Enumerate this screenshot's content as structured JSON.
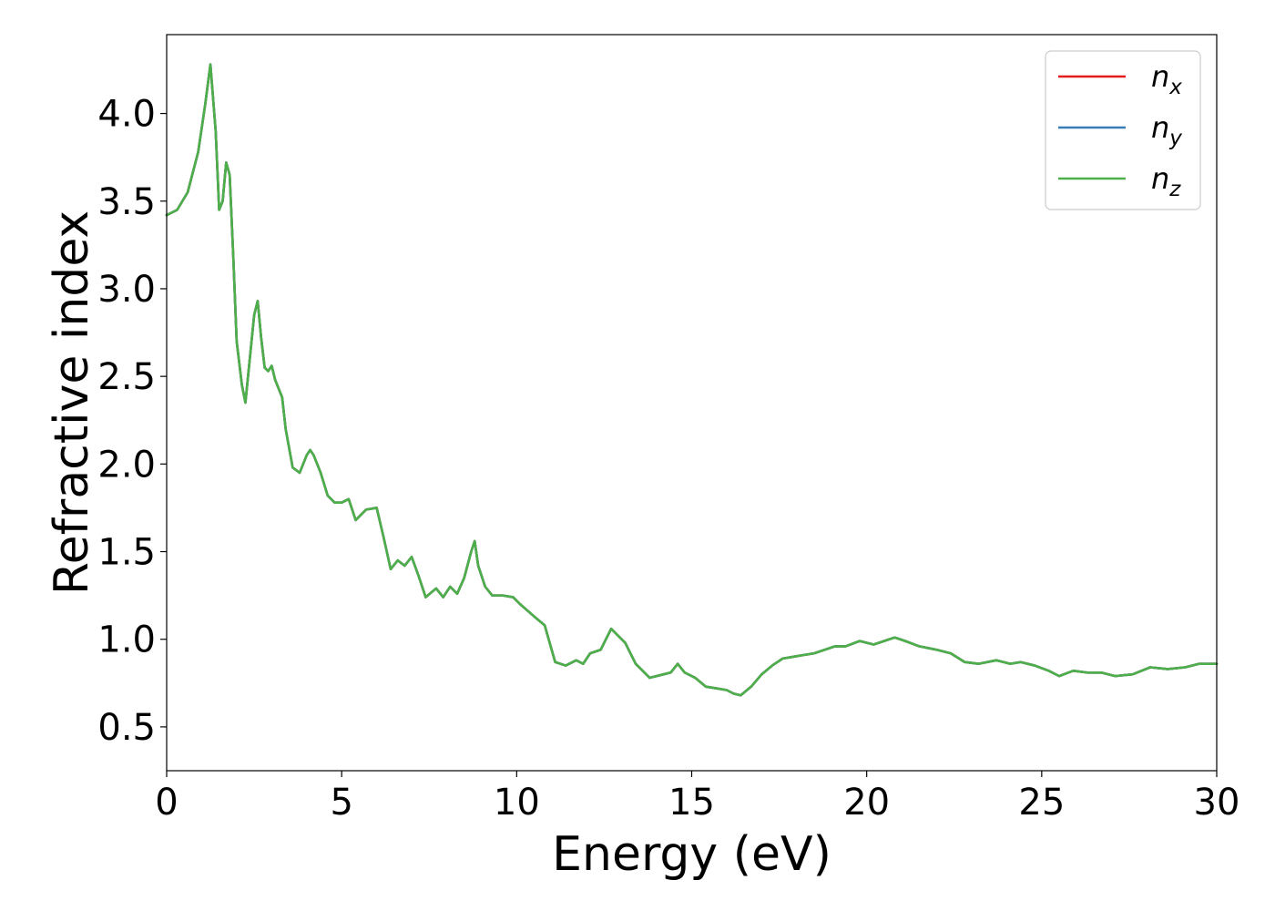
{
  "chart_data": {
    "type": "line",
    "title": "",
    "xlabel": "Energy (eV)",
    "ylabel": "Refractive index",
    "xlim": [
      0,
      30
    ],
    "ylim": [
      0.25,
      4.45
    ],
    "xticks": [
      0,
      5,
      10,
      15,
      20,
      25,
      30
    ],
    "xtick_labels": [
      "0",
      "5",
      "10",
      "15",
      "20",
      "25",
      "30"
    ],
    "yticks": [
      0.5,
      1.0,
      1.5,
      2.0,
      2.5,
      3.0,
      3.5,
      4.0
    ],
    "ytick_labels": [
      "0.5",
      "1.0",
      "1.5",
      "2.0",
      "2.5",
      "3.0",
      "3.5",
      "4.0"
    ],
    "grid": false,
    "legend_position": "top-right",
    "x": [
      0,
      0.3,
      0.6,
      0.9,
      1.1,
      1.25,
      1.4,
      1.5,
      1.6,
      1.7,
      1.8,
      1.9,
      2.0,
      2.15,
      2.25,
      2.35,
      2.5,
      2.6,
      2.7,
      2.8,
      2.9,
      3.0,
      3.1,
      3.2,
      3.3,
      3.4,
      3.6,
      3.8,
      4.0,
      4.1,
      4.2,
      4.4,
      4.6,
      4.8,
      5.0,
      5.2,
      5.4,
      5.7,
      6.0,
      6.2,
      6.4,
      6.6,
      6.8,
      7.0,
      7.2,
      7.4,
      7.7,
      7.9,
      8.1,
      8.3,
      8.5,
      8.7,
      8.8,
      8.9,
      9.1,
      9.3,
      9.6,
      9.9,
      10.1,
      10.5,
      10.8,
      11.1,
      11.4,
      11.7,
      11.9,
      12.1,
      12.4,
      12.7,
      12.9,
      13.1,
      13.4,
      13.6,
      13.8,
      14.2,
      14.4,
      14.6,
      14.8,
      15.1,
      15.4,
      15.7,
      16.0,
      16.2,
      16.4,
      16.7,
      17.0,
      17.3,
      17.6,
      17.9,
      18.2,
      18.5,
      18.8,
      19.1,
      19.4,
      19.8,
      20.2,
      20.5,
      20.8,
      21.1,
      21.5,
      22.0,
      22.4,
      22.8,
      23.2,
      23.7,
      24.1,
      24.4,
      24.8,
      25.2,
      25.5,
      25.9,
      26.3,
      26.7,
      27.1,
      27.6,
      28.1,
      28.6,
      29.1,
      29.5,
      30.0
    ],
    "series": [
      {
        "name": "n_x",
        "label_base": "n",
        "label_sub": "x",
        "color": "#e41a1c",
        "values": [
          3.42,
          3.45,
          3.55,
          3.78,
          4.05,
          4.28,
          3.9,
          3.45,
          3.5,
          3.72,
          3.65,
          3.2,
          2.7,
          2.45,
          2.35,
          2.55,
          2.85,
          2.93,
          2.72,
          2.55,
          2.53,
          2.56,
          2.48,
          2.43,
          2.38,
          2.2,
          1.98,
          1.95,
          2.05,
          2.08,
          2.05,
          1.95,
          1.82,
          1.78,
          1.78,
          1.8,
          1.68,
          1.74,
          1.75,
          1.58,
          1.4,
          1.45,
          1.42,
          1.47,
          1.36,
          1.24,
          1.29,
          1.24,
          1.3,
          1.26,
          1.35,
          1.5,
          1.56,
          1.42,
          1.3,
          1.25,
          1.25,
          1.24,
          1.2,
          1.13,
          1.08,
          0.87,
          0.85,
          0.88,
          0.86,
          0.92,
          0.94,
          1.06,
          1.02,
          0.98,
          0.86,
          0.82,
          0.78,
          0.8,
          0.81,
          0.86,
          0.81,
          0.78,
          0.73,
          0.72,
          0.71,
          0.69,
          0.68,
          0.73,
          0.8,
          0.85,
          0.89,
          0.9,
          0.91,
          0.92,
          0.94,
          0.96,
          0.96,
          0.99,
          0.97,
          0.99,
          1.01,
          0.99,
          0.96,
          0.94,
          0.92,
          0.87,
          0.86,
          0.88,
          0.86,
          0.87,
          0.85,
          0.82,
          0.79,
          0.82,
          0.81,
          0.81,
          0.79,
          0.8,
          0.84,
          0.83,
          0.84,
          0.86,
          0.86
        ]
      },
      {
        "name": "n_y",
        "label_base": "n",
        "label_sub": "y",
        "color": "#377eb8",
        "values": [
          3.42,
          3.45,
          3.55,
          3.78,
          4.05,
          4.28,
          3.9,
          3.45,
          3.5,
          3.72,
          3.65,
          3.2,
          2.7,
          2.45,
          2.35,
          2.55,
          2.85,
          2.93,
          2.72,
          2.55,
          2.53,
          2.56,
          2.48,
          2.43,
          2.38,
          2.2,
          1.98,
          1.95,
          2.05,
          2.08,
          2.05,
          1.95,
          1.82,
          1.78,
          1.78,
          1.8,
          1.68,
          1.74,
          1.75,
          1.58,
          1.4,
          1.45,
          1.42,
          1.47,
          1.36,
          1.24,
          1.29,
          1.24,
          1.3,
          1.26,
          1.35,
          1.5,
          1.56,
          1.42,
          1.3,
          1.25,
          1.25,
          1.24,
          1.2,
          1.13,
          1.08,
          0.87,
          0.85,
          0.88,
          0.86,
          0.92,
          0.94,
          1.06,
          1.02,
          0.98,
          0.86,
          0.82,
          0.78,
          0.8,
          0.81,
          0.86,
          0.81,
          0.78,
          0.73,
          0.72,
          0.71,
          0.69,
          0.68,
          0.73,
          0.8,
          0.85,
          0.89,
          0.9,
          0.91,
          0.92,
          0.94,
          0.96,
          0.96,
          0.99,
          0.97,
          0.99,
          1.01,
          0.99,
          0.96,
          0.94,
          0.92,
          0.87,
          0.86,
          0.88,
          0.86,
          0.87,
          0.85,
          0.82,
          0.79,
          0.82,
          0.81,
          0.81,
          0.79,
          0.8,
          0.84,
          0.83,
          0.84,
          0.86,
          0.86
        ]
      },
      {
        "name": "n_z",
        "label_base": "n",
        "label_sub": "z",
        "color": "#4daf4a",
        "values": [
          3.42,
          3.45,
          3.55,
          3.78,
          4.05,
          4.28,
          3.9,
          3.45,
          3.5,
          3.72,
          3.65,
          3.2,
          2.7,
          2.45,
          2.35,
          2.55,
          2.85,
          2.93,
          2.72,
          2.55,
          2.53,
          2.56,
          2.48,
          2.43,
          2.38,
          2.2,
          1.98,
          1.95,
          2.05,
          2.08,
          2.05,
          1.95,
          1.82,
          1.78,
          1.78,
          1.8,
          1.68,
          1.74,
          1.75,
          1.58,
          1.4,
          1.45,
          1.42,
          1.47,
          1.36,
          1.24,
          1.29,
          1.24,
          1.3,
          1.26,
          1.35,
          1.5,
          1.56,
          1.42,
          1.3,
          1.25,
          1.25,
          1.24,
          1.2,
          1.13,
          1.08,
          0.87,
          0.85,
          0.88,
          0.86,
          0.92,
          0.94,
          1.06,
          1.02,
          0.98,
          0.86,
          0.82,
          0.78,
          0.8,
          0.81,
          0.86,
          0.81,
          0.78,
          0.73,
          0.72,
          0.71,
          0.69,
          0.68,
          0.73,
          0.8,
          0.85,
          0.89,
          0.9,
          0.91,
          0.92,
          0.94,
          0.96,
          0.96,
          0.99,
          0.97,
          0.99,
          1.01,
          0.99,
          0.96,
          0.94,
          0.92,
          0.87,
          0.86,
          0.88,
          0.86,
          0.87,
          0.85,
          0.82,
          0.79,
          0.82,
          0.81,
          0.81,
          0.79,
          0.8,
          0.84,
          0.83,
          0.84,
          0.86,
          0.86
        ]
      }
    ]
  }
}
